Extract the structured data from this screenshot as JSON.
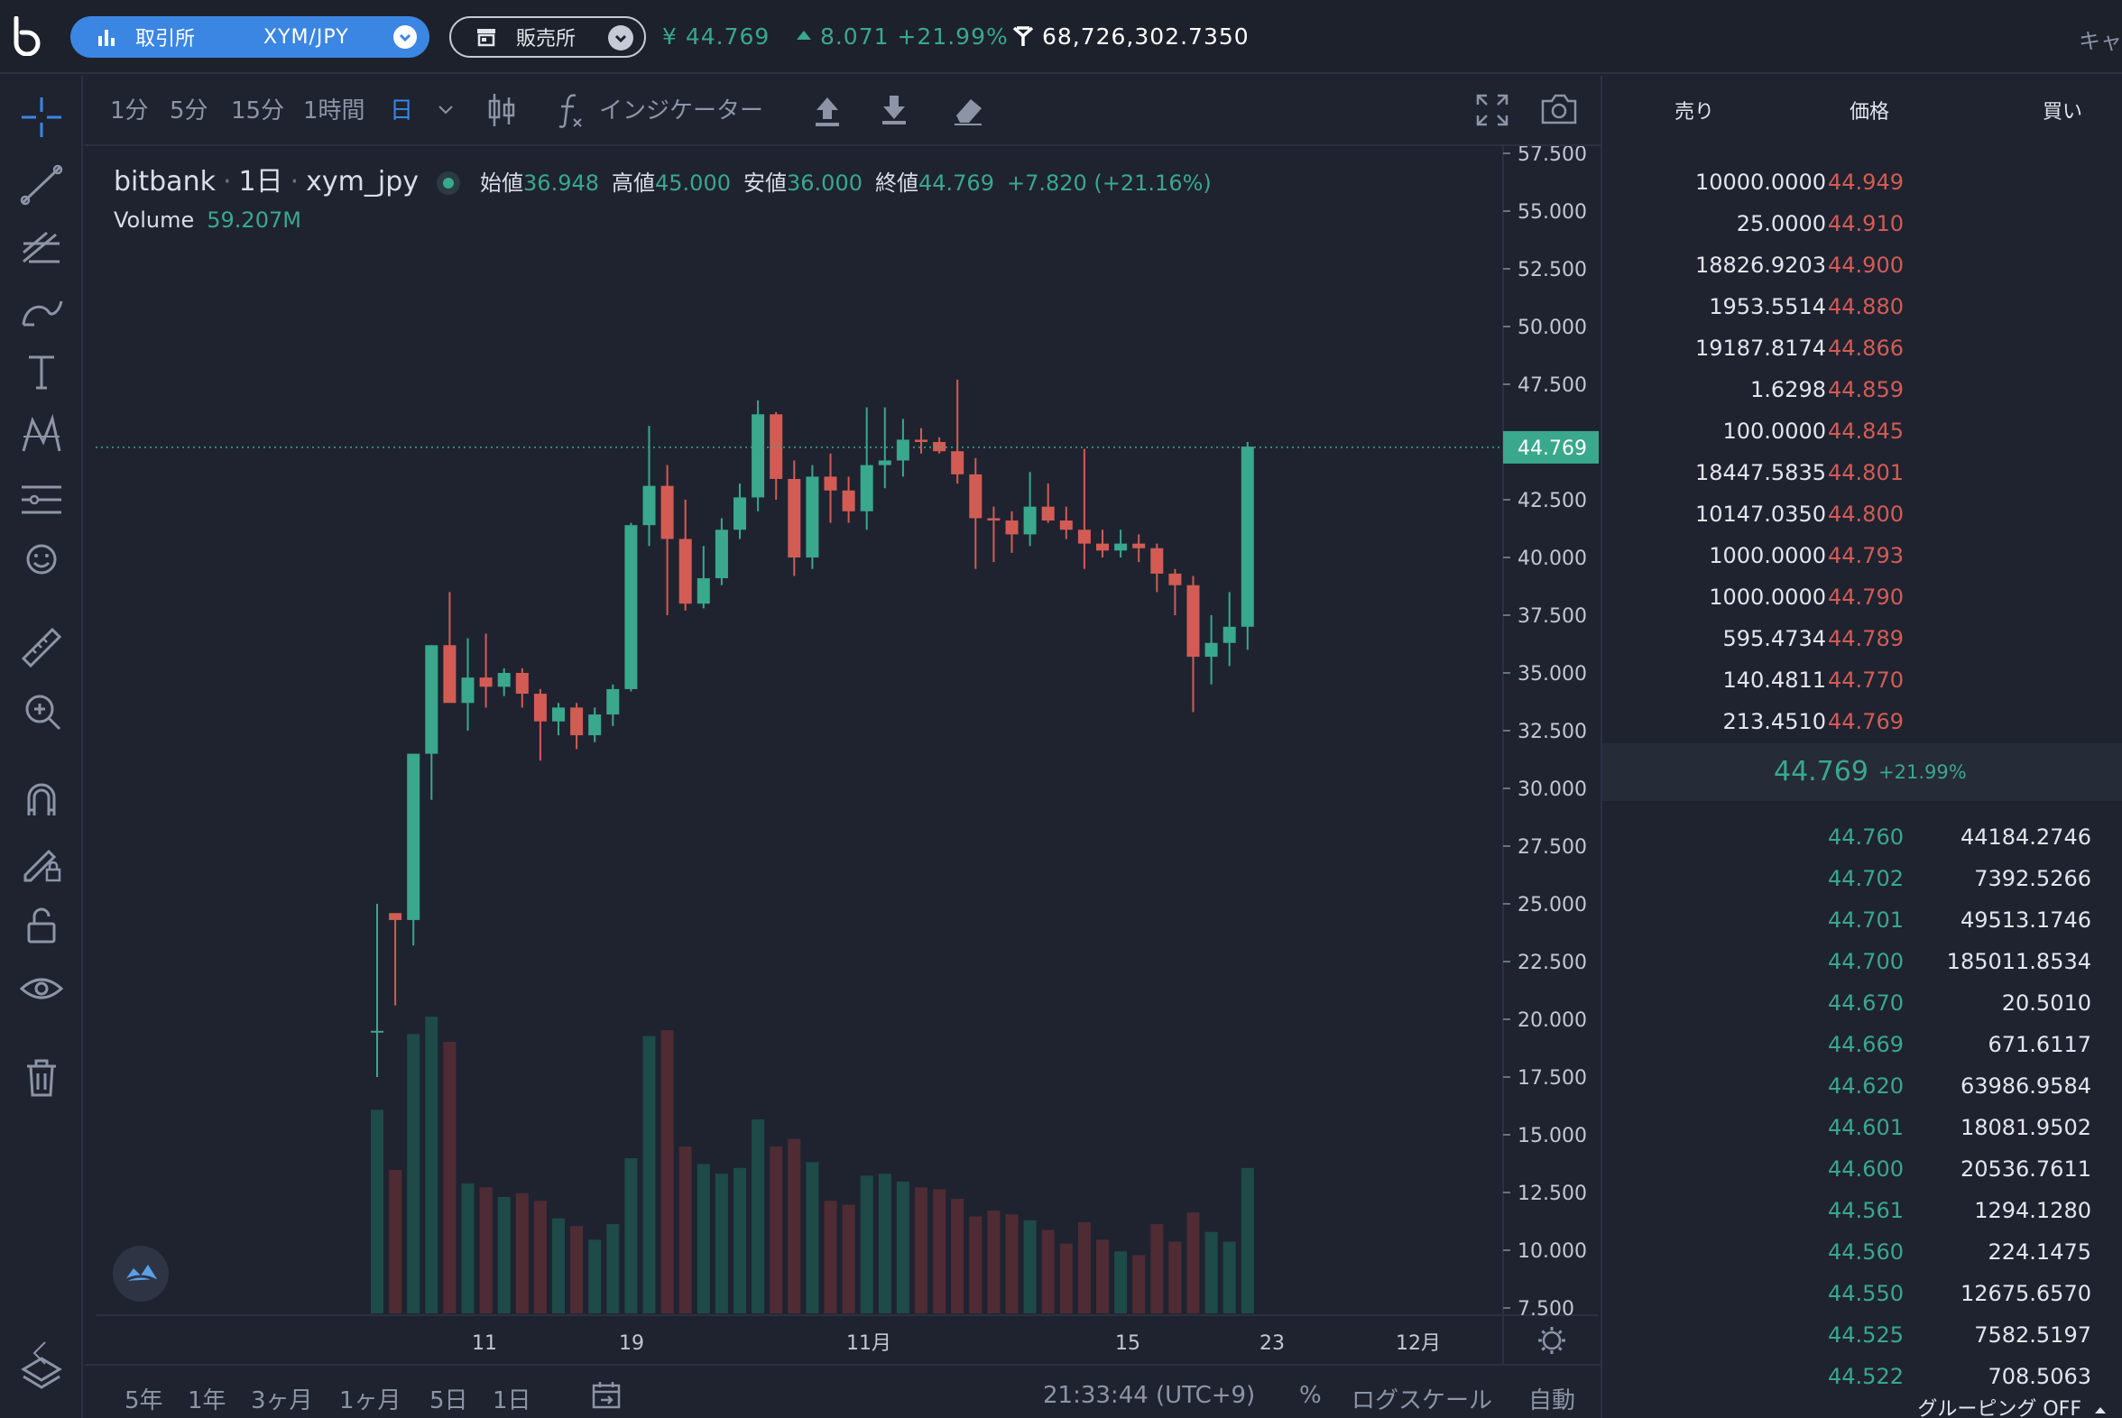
{
  "header": {
    "exchange_label": "取引所",
    "pair": "XYM/JPY",
    "shop_label": "販売所",
    "price": "¥ 44.769",
    "change": "8.071 +21.99%",
    "volume": "68,726,302.7350",
    "right_cut": "キャ"
  },
  "toolbar": {
    "intervals": [
      "1分",
      "5分",
      "15分",
      "1時間",
      "日"
    ],
    "active_interval": "日",
    "indicator_label": "インジケーター"
  },
  "legend": {
    "exchange": "bitbank",
    "interval": "1日",
    "symbol": "xym_jpy",
    "open_label": "始値",
    "open": "36.948",
    "high_label": "高値",
    "high": "45.000",
    "low_label": "安値",
    "low": "36.000",
    "close_label": "終値",
    "close": "44.769",
    "change": "+7.820 (+21.16%)",
    "volume_label": "Volume",
    "volume": "59.207M"
  },
  "chart_data": {
    "type": "candlestick",
    "y_ticks": [
      "57.500",
      "55.000",
      "52.500",
      "50.000",
      "47.500",
      "45.000",
      "42.500",
      "40.000",
      "37.500",
      "35.000",
      "32.500",
      "30.000",
      "27.500",
      "25.000",
      "22.500",
      "20.000",
      "17.500",
      "15.000",
      "12.500",
      "10.000",
      "7.500"
    ],
    "ylim": [
      7.5,
      57.5
    ],
    "x_ticks": [
      "11",
      "19",
      "11月",
      "15",
      "23",
      "12月"
    ],
    "last_price_label": "44.769",
    "last_price": 44.769,
    "colors": {
      "up": "#39a88d",
      "down": "#d25c54",
      "up_vol": "#1e4a48",
      "down_vol": "#4f2b33"
    },
    "candles": [
      [
        19.5,
        25.0,
        17.5,
        19.5,
        10.5
      ],
      [
        24.6,
        24.3,
        20.6,
        24.3,
        7.4
      ],
      [
        24.3,
        31.5,
        23.2,
        31.5,
        14.4
      ],
      [
        31.5,
        36.2,
        29.5,
        36.2,
        15.3
      ],
      [
        36.2,
        38.5,
        33.8,
        33.7,
        14.0
      ],
      [
        33.7,
        36.5,
        32.5,
        34.8,
        6.7
      ],
      [
        34.8,
        36.7,
        33.5,
        34.4,
        6.5
      ],
      [
        34.4,
        35.2,
        34.0,
        35.0,
        6.0
      ],
      [
        35.0,
        35.2,
        33.5,
        34.1,
        6.2
      ],
      [
        34.1,
        34.3,
        31.2,
        32.9,
        5.8
      ],
      [
        32.9,
        33.7,
        32.3,
        33.5,
        4.9
      ],
      [
        33.5,
        33.7,
        31.7,
        32.3,
        4.5
      ],
      [
        32.3,
        33.5,
        32.0,
        33.2,
        3.8
      ],
      [
        33.2,
        34.5,
        32.7,
        34.3,
        4.6
      ],
      [
        34.3,
        41.5,
        34.2,
        41.4,
        8.0
      ],
      [
        41.4,
        45.7,
        40.5,
        43.1,
        14.3
      ],
      [
        43.1,
        44.0,
        37.5,
        40.8,
        14.6
      ],
      [
        40.8,
        42.5,
        37.7,
        38.0,
        8.6
      ],
      [
        38.0,
        40.5,
        37.8,
        39.1,
        7.7
      ],
      [
        39.1,
        41.7,
        38.8,
        41.2,
        7.2
      ],
      [
        41.2,
        43.2,
        40.8,
        42.6,
        7.5
      ],
      [
        42.6,
        46.8,
        42.0,
        46.2,
        10.0
      ],
      [
        46.2,
        46.3,
        42.5,
        43.4,
        8.6
      ],
      [
        43.4,
        44.2,
        39.2,
        40.0,
        9.0
      ],
      [
        40.0,
        44.0,
        39.5,
        43.5,
        7.8
      ],
      [
        43.5,
        44.5,
        41.5,
        42.9,
        5.8
      ],
      [
        42.9,
        43.5,
        41.5,
        42.0,
        5.6
      ],
      [
        42.0,
        46.5,
        41.2,
        44.0,
        7.1
      ],
      [
        44.0,
        46.5,
        43.0,
        44.2,
        7.2
      ],
      [
        44.2,
        46.0,
        43.5,
        45.1,
        6.8
      ],
      [
        45.1,
        45.6,
        44.5,
        45.0,
        6.5
      ],
      [
        45.0,
        45.2,
        44.5,
        44.6,
        6.4
      ],
      [
        44.6,
        47.7,
        43.2,
        43.6,
        5.9
      ],
      [
        43.6,
        44.3,
        39.5,
        41.7,
        5.0
      ],
      [
        41.7,
        42.2,
        39.8,
        41.6,
        5.3
      ],
      [
        41.6,
        42.0,
        40.2,
        41.0,
        5.1
      ],
      [
        41.0,
        43.7,
        40.5,
        42.2,
        4.8
      ],
      [
        42.2,
        43.2,
        41.5,
        41.6,
        4.3
      ],
      [
        41.6,
        42.2,
        40.8,
        41.2,
        3.6
      ],
      [
        41.2,
        44.7,
        39.5,
        40.6,
        4.7
      ],
      [
        40.6,
        41.2,
        40.0,
        40.3,
        3.8
      ],
      [
        40.3,
        41.2,
        40.0,
        40.6,
        3.2
      ],
      [
        40.6,
        41.0,
        39.8,
        40.4,
        3.0
      ],
      [
        40.4,
        40.6,
        38.5,
        39.3,
        4.6
      ],
      [
        39.3,
        39.5,
        37.5,
        38.8,
        3.7
      ],
      [
        38.8,
        39.2,
        33.3,
        35.7,
        5.2
      ],
      [
        35.7,
        37.5,
        34.5,
        36.3,
        4.2
      ],
      [
        36.3,
        38.5,
        35.3,
        37.0,
        3.7
      ],
      [
        37.0,
        45.0,
        36.0,
        44.8,
        7.5
      ]
    ]
  },
  "bottombar": {
    "ranges": [
      "5年",
      "1年",
      "3ヶ月",
      "1ヶ月",
      "5日",
      "1日"
    ],
    "time": "21:33:44 (UTC+9)",
    "percent": "%",
    "log": "ログスケール",
    "auto": "自動"
  },
  "orderbook": {
    "col_sell": "売り",
    "col_price": "価格",
    "col_buy": "買い",
    "asks": [
      {
        "qty": "10000.0000",
        "price": "44.949"
      },
      {
        "qty": "25.0000",
        "price": "44.910"
      },
      {
        "qty": "18826.9203",
        "price": "44.900"
      },
      {
        "qty": "1953.5514",
        "price": "44.880"
      },
      {
        "qty": "19187.8174",
        "price": "44.866"
      },
      {
        "qty": "1.6298",
        "price": "44.859"
      },
      {
        "qty": "100.0000",
        "price": "44.845"
      },
      {
        "qty": "18447.5835",
        "price": "44.801"
      },
      {
        "qty": "10147.0350",
        "price": "44.800"
      },
      {
        "qty": "1000.0000",
        "price": "44.793"
      },
      {
        "qty": "1000.0000",
        "price": "44.790"
      },
      {
        "qty": "595.4734",
        "price": "44.789"
      },
      {
        "qty": "140.4811",
        "price": "44.770"
      },
      {
        "qty": "213.4510",
        "price": "44.769"
      }
    ],
    "mid_price": "44.769",
    "mid_change": "+21.99%",
    "bids": [
      {
        "price": "44.760",
        "qty": "44184.2746"
      },
      {
        "price": "44.702",
        "qty": "7392.5266"
      },
      {
        "price": "44.701",
        "qty": "49513.1746"
      },
      {
        "price": "44.700",
        "qty": "185011.8534"
      },
      {
        "price": "44.670",
        "qty": "20.5010"
      },
      {
        "price": "44.669",
        "qty": "671.6117"
      },
      {
        "price": "44.620",
        "qty": "63986.9584"
      },
      {
        "price": "44.601",
        "qty": "18081.9502"
      },
      {
        "price": "44.600",
        "qty": "20536.7611"
      },
      {
        "price": "44.561",
        "qty": "1294.1280"
      },
      {
        "price": "44.560",
        "qty": "224.1475"
      },
      {
        "price": "44.550",
        "qty": "12675.6570"
      },
      {
        "price": "44.525",
        "qty": "7582.5197"
      },
      {
        "price": "44.522",
        "qty": "708.5063"
      }
    ],
    "grouping": "グルーピング OFF"
  }
}
